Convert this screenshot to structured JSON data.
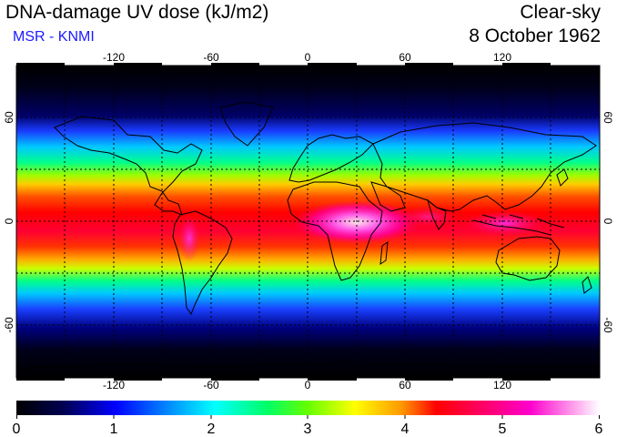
{
  "header": {
    "title": "DNA-damage UV dose (kJ/m2)",
    "credit": "MSR - KNMI",
    "sky_condition": "Clear-sky",
    "date": "8 October 1962"
  },
  "axes": {
    "lon_ticks": [
      "-120",
      "-60",
      "0",
      "60",
      "120"
    ],
    "lat_left": [
      "60",
      "0",
      "-60"
    ],
    "lat_right": [
      "60",
      "0",
      "-60"
    ]
  },
  "colorbar": {
    "ticks": [
      "0",
      "1",
      "2",
      "3",
      "4",
      "5",
      "6"
    ],
    "stops": [
      "#000000",
      "#000055",
      "#0000ff",
      "#0099ff",
      "#00ffff",
      "#00ff66",
      "#66ff00",
      "#ffff00",
      "#ff9900",
      "#ff0000",
      "#ff0066",
      "#ff00cc",
      "#ffffff"
    ]
  }
}
